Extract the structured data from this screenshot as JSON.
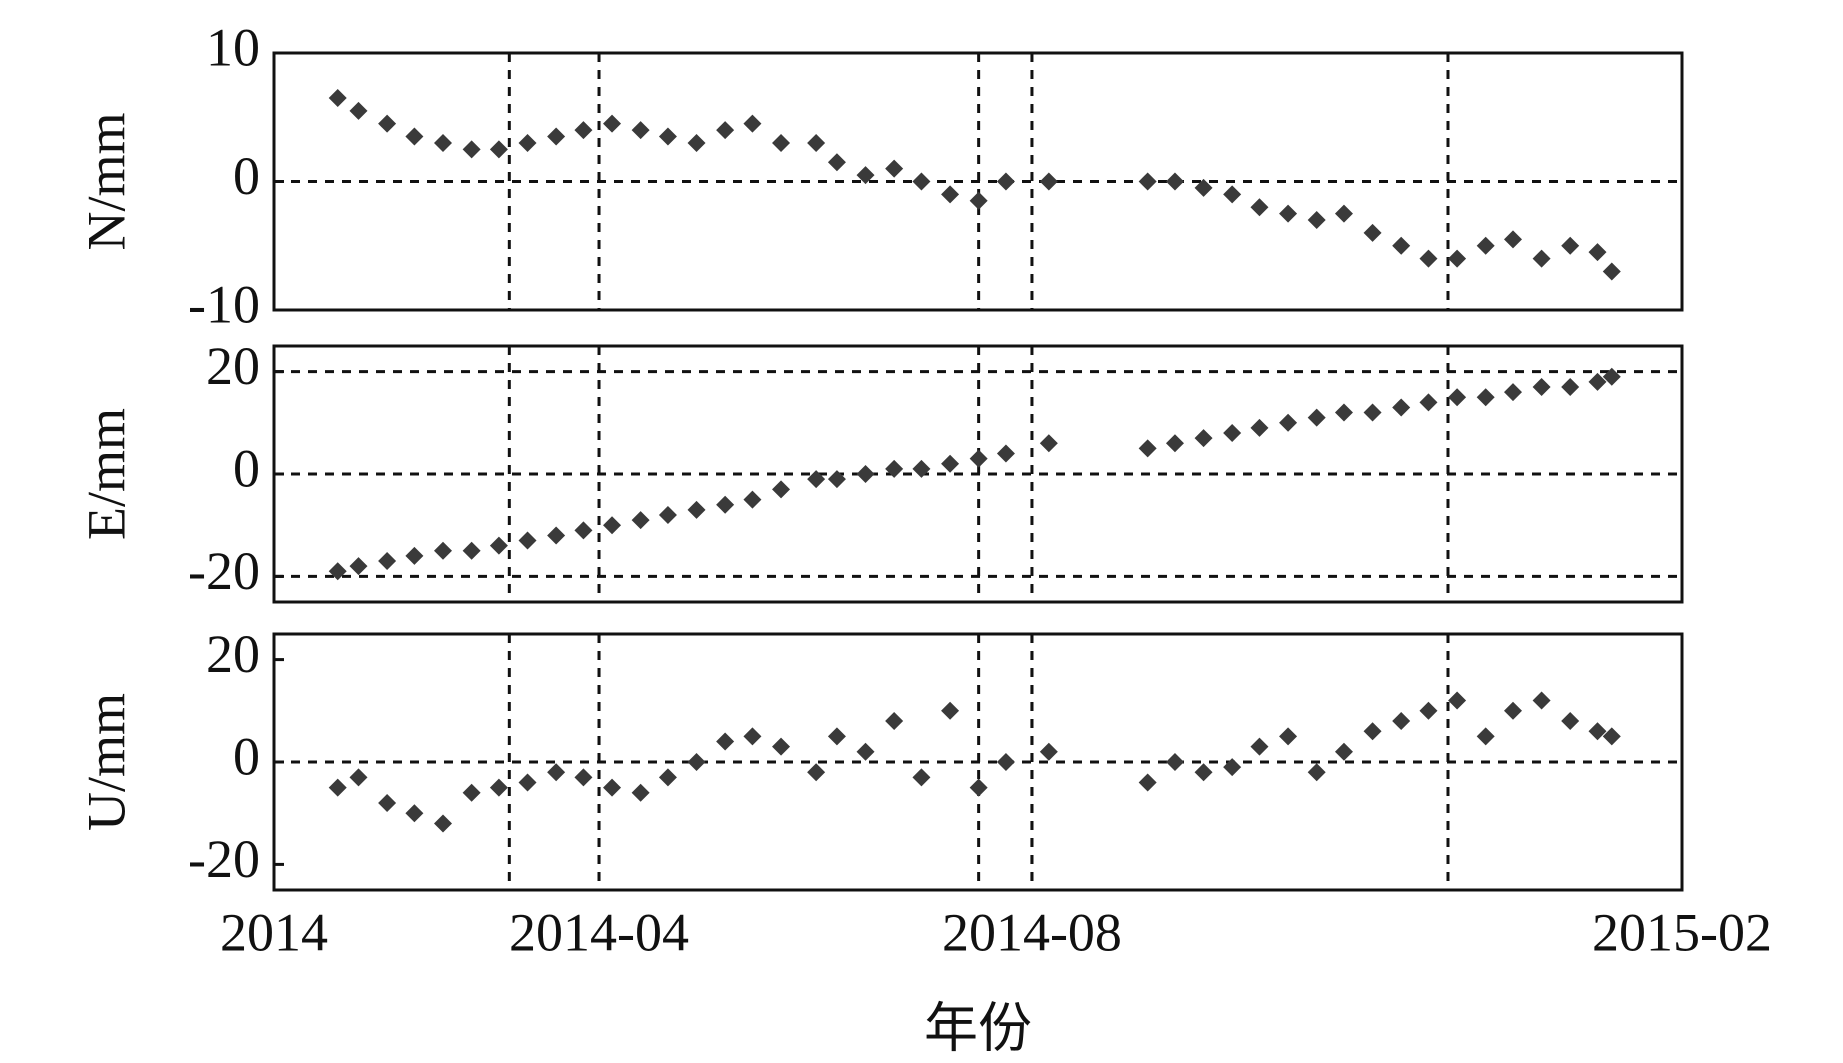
{
  "chart_data": [
    {
      "type": "scatter",
      "ylabel": "N/mm",
      "color": "#3a3a3a",
      "marker": "diamond",
      "xlim": [
        2014,
        2015.083
      ],
      "xgrid": [
        2014.181,
        2014.25,
        2014.542,
        2014.583,
        2014.903
      ],
      "ylim": [
        -10,
        10
      ],
      "yticks": [
        -10,
        0,
        10
      ],
      "ygrid": [
        0
      ],
      "x": [
        2014.049,
        2014.065,
        2014.087,
        2014.108,
        2014.13,
        2014.152,
        2014.173,
        2014.195,
        2014.217,
        2014.238,
        2014.26,
        2014.282,
        2014.303,
        2014.325,
        2014.347,
        2014.368,
        2014.39,
        2014.417,
        2014.433,
        2014.455,
        2014.477,
        2014.498,
        2014.52,
        2014.542,
        2014.563,
        2014.596,
        2014.672,
        2014.693,
        2014.715,
        2014.737,
        2014.758,
        2014.78,
        2014.802,
        2014.823,
        2014.845,
        2014.867,
        2014.888,
        2014.91,
        2014.932,
        2014.953,
        2014.975,
        2014.997,
        2015.018,
        2015.029
      ],
      "values": [
        6.5,
        5.5,
        4.5,
        3.5,
        3,
        2.5,
        2.5,
        3,
        3.5,
        4,
        4.5,
        4,
        3.5,
        3,
        4,
        4.5,
        3,
        3,
        1.5,
        0.5,
        1,
        0,
        -1,
        -1.5,
        0,
        0,
        0,
        0,
        -0.5,
        -1,
        -2,
        -2.5,
        -3,
        -2.5,
        -4,
        -5,
        -6,
        -6,
        -5,
        -4.5,
        -6,
        -5,
        -5.5,
        -7
      ]
    },
    {
      "type": "scatter",
      "ylabel": "E/mm",
      "color": "#3a3a3a",
      "marker": "diamond",
      "xlim": [
        2014,
        2015.083
      ],
      "xgrid": [
        2014.181,
        2014.25,
        2014.542,
        2014.583,
        2014.903
      ],
      "ylim": [
        -25,
        25
      ],
      "yticks": [
        -20,
        0,
        20
      ],
      "ygrid": [
        -20,
        0,
        20
      ],
      "x": [
        2014.049,
        2014.065,
        2014.087,
        2014.108,
        2014.13,
        2014.152,
        2014.173,
        2014.195,
        2014.217,
        2014.238,
        2014.26,
        2014.282,
        2014.303,
        2014.325,
        2014.347,
        2014.368,
        2014.39,
        2014.417,
        2014.433,
        2014.455,
        2014.477,
        2014.498,
        2014.52,
        2014.542,
        2014.563,
        2014.596,
        2014.672,
        2014.693,
        2014.715,
        2014.737,
        2014.758,
        2014.78,
        2014.802,
        2014.823,
        2014.845,
        2014.867,
        2014.888,
        2014.91,
        2014.932,
        2014.953,
        2014.975,
        2014.997,
        2015.018,
        2015.029
      ],
      "values": [
        -19,
        -18,
        -17,
        -16,
        -15,
        -15,
        -14,
        -13,
        -12,
        -11,
        -10,
        -9,
        -8,
        -7,
        -6,
        -5,
        -3,
        -1,
        -1,
        0,
        1,
        1,
        2,
        3,
        4,
        6,
        5,
        6,
        7,
        8,
        9,
        10,
        11,
        12,
        12,
        13,
        14,
        15,
        15,
        16,
        17,
        17,
        18,
        19
      ]
    },
    {
      "type": "scatter",
      "ylabel": "U/mm",
      "xlabel": "年份",
      "color": "#3a3a3a",
      "marker": "diamond",
      "xlim": [
        2014,
        2015.083
      ],
      "xgrid": [
        2014.181,
        2014.25,
        2014.542,
        2014.583,
        2014.903
      ],
      "xticks": [
        {
          "value": 2014,
          "label": "2014"
        },
        {
          "value": 2014.25,
          "label": "2014-04"
        },
        {
          "value": 2014.583,
          "label": "2014-08"
        },
        {
          "value": 2015.083,
          "label": "2015-02"
        }
      ],
      "ylim": [
        -25,
        25
      ],
      "yticks": [
        -20,
        0,
        20
      ],
      "ygrid": [
        0
      ],
      "x": [
        2014.049,
        2014.065,
        2014.087,
        2014.108,
        2014.13,
        2014.152,
        2014.173,
        2014.195,
        2014.217,
        2014.238,
        2014.26,
        2014.282,
        2014.303,
        2014.325,
        2014.347,
        2014.368,
        2014.39,
        2014.417,
        2014.433,
        2014.455,
        2014.477,
        2014.498,
        2014.52,
        2014.542,
        2014.563,
        2014.596,
        2014.672,
        2014.693,
        2014.715,
        2014.737,
        2014.758,
        2014.78,
        2014.802,
        2014.823,
        2014.845,
        2014.867,
        2014.888,
        2014.91,
        2014.932,
        2014.953,
        2014.975,
        2014.997,
        2015.018,
        2015.029
      ],
      "values": [
        -5,
        -3,
        -8,
        -10,
        -12,
        -6,
        -5,
        -4,
        -2,
        -3,
        -5,
        -6,
        -3,
        0,
        4,
        5,
        3,
        -2,
        5,
        2,
        8,
        -3,
        10,
        -5,
        0,
        2,
        -4,
        0,
        -2,
        -1,
        3,
        5,
        -2,
        2,
        6,
        8,
        10,
        12,
        5,
        10,
        12,
        8,
        6,
        5
      ]
    }
  ]
}
